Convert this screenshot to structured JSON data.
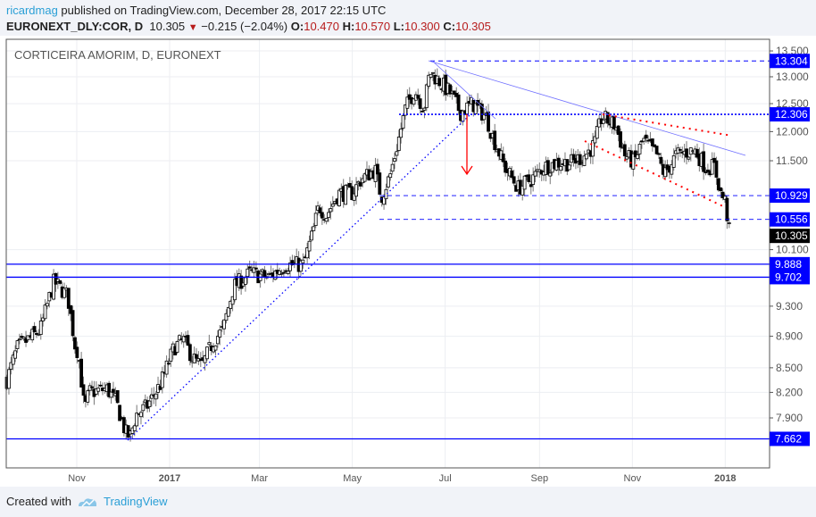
{
  "header": {
    "user": "ricardmag",
    "published": "published on TradingView.com, December 28, 2017 22:15 UTC",
    "symbol": "EURONEXT_DLY:COR, D",
    "last": "10.305",
    "change": "−0.215 (−2.04%)",
    "o_label": "O:",
    "o": "10.470",
    "h_label": "H:",
    "h": "10.570",
    "l_label": "L:",
    "l": "10.300",
    "c_label": "C:",
    "c": "10.305"
  },
  "footer": {
    "created_with": "Created with",
    "brand": "TradingView"
  },
  "colors": {
    "level": "#0000ff",
    "last": "#000000",
    "down": "#b71c1c",
    "arrow": "#ff0000",
    "brand": "#2a9fd6"
  },
  "chart_data": {
    "type": "candlestick",
    "title": "CORTICEIRA AMORIM, D, EURONEXT",
    "x_unit": "days since 2016-11-01",
    "x_ticks": [
      {
        "label": "Nov",
        "day": 0
      },
      {
        "label": "2017",
        "day": 61
      },
      {
        "label": "Mar",
        "day": 120
      },
      {
        "label": "May",
        "day": 181
      },
      {
        "label": "Jul",
        "day": 242
      },
      {
        "label": "Sep",
        "day": 304
      },
      {
        "label": "Nov",
        "day": 365
      },
      {
        "label": "2018",
        "day": 426
      }
    ],
    "y_scale": "log",
    "y_ticks": [
      "13.500",
      "13.000",
      "12.500",
      "12.000",
      "11.500",
      "10.100",
      "9.300",
      "8.900",
      "8.500",
      "8.200",
      "7.900"
    ],
    "price_levels": [
      {
        "label": "13.304",
        "value": 13.304,
        "style": "dashed"
      },
      {
        "label": "12.306",
        "value": 12.306,
        "style": "dotted"
      },
      {
        "label": "10.929",
        "value": 10.929,
        "style": "dashed"
      },
      {
        "label": "10.556",
        "value": 10.556,
        "style": "dashed"
      },
      {
        "label": "9.888",
        "value": 9.888,
        "style": "solid"
      },
      {
        "label": "9.702",
        "value": 9.702,
        "style": "solid"
      },
      {
        "label": "7.662",
        "value": 7.662,
        "style": "solid"
      }
    ],
    "last_price": {
      "label": "10.305",
      "value": 10.305
    },
    "close_path": [
      [
        -46,
        8.35
      ],
      [
        -39,
        8.75
      ],
      [
        -24,
        8.98
      ],
      [
        -15,
        9.64
      ],
      [
        -6,
        9.44
      ],
      [
        -1,
        8.76
      ],
      [
        1,
        8.7
      ],
      [
        5,
        7.98
      ],
      [
        8,
        8.2
      ],
      [
        20,
        8.24
      ],
      [
        26,
        8.08
      ],
      [
        32,
        7.73
      ],
      [
        35,
        7.68
      ],
      [
        39,
        7.94
      ],
      [
        46,
        8.03
      ],
      [
        55,
        8.3
      ],
      [
        64,
        8.76
      ],
      [
        70,
        8.85
      ],
      [
        76,
        8.63
      ],
      [
        82,
        8.51
      ],
      [
        90,
        8.85
      ],
      [
        96,
        8.98
      ],
      [
        103,
        9.57
      ],
      [
        114,
        9.76
      ],
      [
        126,
        9.7
      ],
      [
        137,
        9.88
      ],
      [
        149,
        9.88
      ],
      [
        155,
        10.35
      ],
      [
        159,
        10.76
      ],
      [
        164,
        10.62
      ],
      [
        172,
        10.97
      ],
      [
        181,
        10.97
      ],
      [
        187,
        11.2
      ],
      [
        196,
        11.35
      ],
      [
        200,
        10.9
      ],
      [
        206,
        11.27
      ],
      [
        212,
        11.93
      ],
      [
        216,
        12.42
      ],
      [
        222,
        12.75
      ],
      [
        228,
        12.42
      ],
      [
        232,
        13.1
      ],
      [
        238,
        12.92
      ],
      [
        246,
        12.67
      ],
      [
        252,
        12.34
      ],
      [
        260,
        12.5
      ],
      [
        269,
        12.26
      ],
      [
        273,
        11.93
      ],
      [
        281,
        11.4
      ],
      [
        290,
        11.05
      ],
      [
        299,
        11.2
      ],
      [
        307,
        11.4
      ],
      [
        316,
        11.47
      ],
      [
        325,
        11.47
      ],
      [
        334,
        11.6
      ],
      [
        340,
        11.77
      ],
      [
        345,
        12.26
      ],
      [
        354,
        12.1
      ],
      [
        360,
        11.6
      ],
      [
        366,
        11.47
      ],
      [
        372,
        11.85
      ],
      [
        381,
        11.6
      ],
      [
        386,
        11.27
      ],
      [
        394,
        11.6
      ],
      [
        406,
        11.68
      ],
      [
        413,
        11.4
      ],
      [
        419,
        11.4
      ],
      [
        423,
        10.97
      ],
      [
        426,
        10.83
      ],
      [
        429,
        10.31
      ]
    ]
  }
}
